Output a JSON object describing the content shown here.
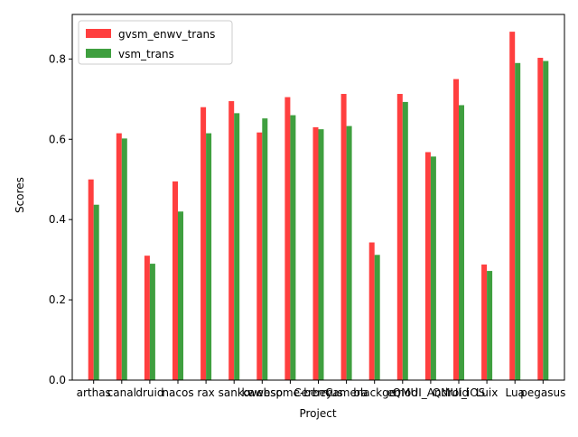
{
  "chart_data": {
    "type": "bar",
    "xlabel": "Project",
    "ylabel": "Scores",
    "categories": [
      "arthas",
      "canal",
      "druid",
      "nacos",
      "rax",
      "sanko",
      "kwebsp",
      "awesome-berry",
      "Cerberus",
      "Camera",
      "blackge",
      "emod",
      "QMUI_Android",
      "QMUI_iOS",
      "Luix",
      "Lua",
      "pegasus"
    ],
    "series": [
      {
        "name": "gvsm_enwv_trans",
        "color": "#ff3f3f",
        "values": [
          0.5,
          0.615,
          0.31,
          0.495,
          0.68,
          0.695,
          0.617,
          0.705,
          0.63,
          0.713,
          0.343,
          0.713,
          0.568,
          0.75,
          0.288,
          0.868,
          0.803
        ]
      },
      {
        "name": "vsm_trans",
        "color": "#3f9f3f",
        "values": [
          0.437,
          0.602,
          0.29,
          0.42,
          0.615,
          0.665,
          0.652,
          0.66,
          0.625,
          0.633,
          0.312,
          0.693,
          0.557,
          0.685,
          0.272,
          0.79,
          0.795
        ]
      }
    ],
    "ylim": [
      0,
      0.911
    ],
    "yticks": [
      {
        "value": 0,
        "label": "0.0"
      },
      {
        "value": 0.2,
        "label": "0.2"
      },
      {
        "value": 0.4,
        "label": "0.4"
      },
      {
        "value": 0.6,
        "label": "0.6"
      },
      {
        "value": 0.8,
        "label": "0.8"
      }
    ],
    "legend": "upper left"
  }
}
